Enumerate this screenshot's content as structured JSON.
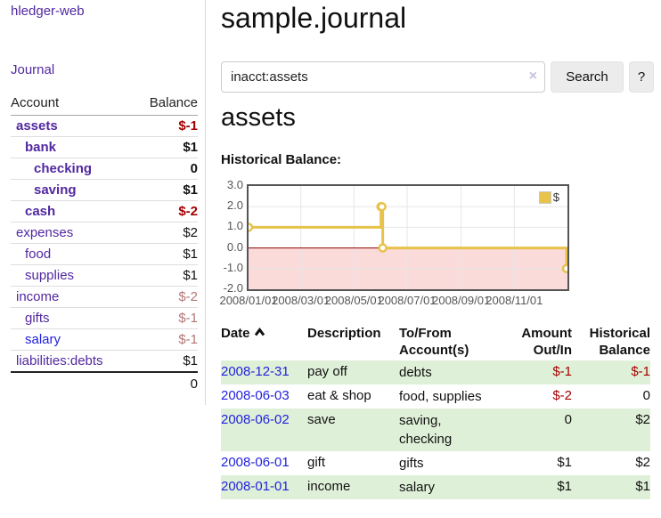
{
  "app": {
    "brand": "hledger-web",
    "nav_journal": "Journal"
  },
  "sidebar": {
    "headers": {
      "account": "Account",
      "balance": "Balance"
    },
    "accounts": [
      {
        "name": "assets",
        "balance": "$-1"
      },
      {
        "name": "bank",
        "balance": "$1"
      },
      {
        "name": "checking",
        "balance": "0"
      },
      {
        "name": "saving",
        "balance": "$1"
      },
      {
        "name": "cash",
        "balance": "$-2"
      },
      {
        "name": "expenses",
        "balance": "$2"
      },
      {
        "name": "food",
        "balance": "$1"
      },
      {
        "name": "supplies",
        "balance": "$1"
      },
      {
        "name": "income",
        "balance": "$-2"
      },
      {
        "name": "gifts",
        "balance": "$-1"
      },
      {
        "name": "salary",
        "balance": "$-1"
      },
      {
        "name": "liabilities:debts",
        "balance": "$1"
      }
    ],
    "total": "0"
  },
  "main": {
    "title": "sample.journal",
    "search": {
      "value": "inacct:assets",
      "clear_icon": "×",
      "button": "Search",
      "help_button": "?"
    },
    "account_heading": "assets",
    "chart_label": "Historical Balance:"
  },
  "chart_data": {
    "type": "line",
    "subtype": "step",
    "title": "Historical Balance",
    "xlabel": "",
    "ylabel": "",
    "grid": true,
    "legend_position": "top-right",
    "xrange": [
      "2008-01-01",
      "2009-01-01"
    ],
    "ylim": [
      -2,
      3
    ],
    "series": [
      {
        "name": "$",
        "color": "#e8c24a",
        "points": [
          [
            "2008-01-01",
            1
          ],
          [
            "2008-06-01",
            2
          ],
          [
            "2008-06-02",
            2
          ],
          [
            "2008-06-03",
            0
          ],
          [
            "2008-12-31",
            -1
          ]
        ]
      }
    ],
    "yticks": [
      {
        "v": 3,
        "label": "3.0"
      },
      {
        "v": 2,
        "label": "2.0"
      },
      {
        "v": 1,
        "label": "1.0"
      },
      {
        "v": 0,
        "label": "0.0"
      },
      {
        "v": -1,
        "label": "-1.0"
      },
      {
        "v": -2,
        "label": "-2.0"
      }
    ],
    "xticks": [
      {
        "date": "2008-01-01",
        "label": "2008/01/01"
      },
      {
        "date": "2008-03-01",
        "label": "2008/03/01"
      },
      {
        "date": "2008-05-01",
        "label": "2008/05/01"
      },
      {
        "date": "2008-07-01",
        "label": "2008/07/01"
      },
      {
        "date": "2008-09-01",
        "label": "2008/09/01"
      },
      {
        "date": "2008-11-01",
        "label": "2008/11/01"
      }
    ]
  },
  "register": {
    "headers": {
      "date": "Date",
      "description": "Description",
      "accounts": "To/From\nAccount(s)",
      "amount": "Amount\nOut/In",
      "balance": "Historical\nBalance"
    },
    "rows": [
      {
        "date": "2008-12-31",
        "description": "pay off",
        "accounts": "debts",
        "amount": "$-1",
        "balance": "$-1"
      },
      {
        "date": "2008-06-03",
        "description": "eat & shop",
        "accounts": "food, supplies",
        "amount": "$-2",
        "balance": "0"
      },
      {
        "date": "2008-06-02",
        "description": "save",
        "accounts": "saving,\nchecking",
        "amount": "0",
        "balance": "$2"
      },
      {
        "date": "2008-06-01",
        "description": "gift",
        "accounts": "gifts",
        "amount": "$1",
        "balance": "$2"
      },
      {
        "date": "2008-01-01",
        "description": "income",
        "accounts": "salary",
        "amount": "$1",
        "balance": "$1"
      }
    ]
  },
  "colors": {
    "link_purple": "#5128a0",
    "link_blue": "#2222dd",
    "negative_strong": "#a40000",
    "negative_muted": "#b47676",
    "row_green": "#dff0d8",
    "chart_gold": "#e8c24a",
    "chart_negative_bg": "#fbdada",
    "chart_zero_line": "#8b0000",
    "chart_border": "#545454",
    "chart_grid": "#e6e6e6",
    "button_bg": "#ececec",
    "input_border": "#cccccc",
    "clear_icon": "#c7bfdf"
  }
}
